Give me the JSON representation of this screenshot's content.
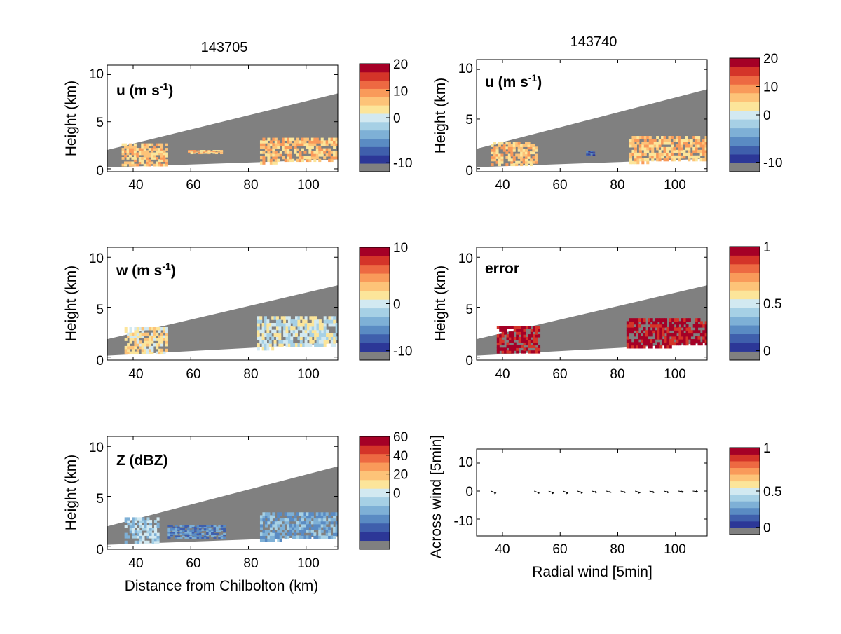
{
  "colors": {
    "gray": "#808080",
    "scale": [
      "#2c3797",
      "#3f5fac",
      "#5a8bc3",
      "#7eb0d6",
      "#a6d0e5",
      "#d2e9f1",
      "#fce59a",
      "#fdc378",
      "#f99a5a",
      "#ed6942",
      "#d43429",
      "#a50026"
    ]
  },
  "chart_data": [
    {
      "type": "heatmap",
      "panel": "u-143705",
      "title": "143705",
      "annotation": "u (m s-1)",
      "ylabel": "Height (km)",
      "xlabel": "",
      "xlim": [
        31,
        111
      ],
      "ylim": [
        -0.3,
        11
      ],
      "xticks": [
        "40",
        "60",
        "80",
        "100"
      ],
      "yticks": [
        "0",
        "5",
        "10"
      ],
      "grid": false,
      "colorbar": {
        "ticks": [
          {
            "label": "20",
            "frac": 1.0
          },
          {
            "label": "10",
            "frac": 0.75
          },
          {
            "label": "0",
            "frac": 0.5
          },
          {
            "label": "-10",
            "frac": 0.083
          }
        ]
      },
      "coverage": {
        "base_at": [
          [
            31,
            0.15
          ],
          [
            111,
            1.0
          ]
        ],
        "top_at": [
          [
            31,
            2.0
          ],
          [
            111,
            8.0
          ]
        ]
      },
      "features": [
        {
          "x": [
            36,
            52
          ],
          "y": [
            0.3,
            2.7
          ],
          "level": 7
        },
        {
          "x": [
            84,
            111
          ],
          "y": [
            0.5,
            3.3
          ],
          "level": 7
        },
        {
          "x": [
            59,
            71
          ],
          "y": [
            1.6,
            2.0
          ],
          "level": 7
        }
      ]
    },
    {
      "type": "heatmap",
      "panel": "u-143740",
      "title": "143740",
      "annotation": "u (m s-1)",
      "ylabel": "Height (km)",
      "xlabel": "",
      "xlim": [
        31,
        111
      ],
      "ylim": [
        -0.3,
        11
      ],
      "xticks": [
        "40",
        "60",
        "80",
        "100"
      ],
      "yticks": [
        "0",
        "5",
        "10"
      ],
      "grid": false,
      "colorbar": {
        "ticks": [
          {
            "label": "20",
            "frac": 1.0
          },
          {
            "label": "10",
            "frac": 0.75
          },
          {
            "label": "0",
            "frac": 0.5
          },
          {
            "label": "-10",
            "frac": 0.083
          }
        ]
      },
      "coverage": {
        "base_at": [
          [
            31,
            0.15
          ],
          [
            111,
            1.0
          ]
        ],
        "top_at": [
          [
            31,
            2.0
          ],
          [
            111,
            8.0
          ]
        ]
      },
      "features": [
        {
          "x": [
            36,
            52
          ],
          "y": [
            0.3,
            2.7
          ],
          "level": 7
        },
        {
          "x": [
            84,
            111
          ],
          "y": [
            0.5,
            3.3
          ],
          "level": 7
        },
        {
          "x": [
            69,
            72
          ],
          "y": [
            1.3,
            1.8
          ],
          "level": 1
        }
      ]
    },
    {
      "type": "heatmap",
      "panel": "w-143705",
      "annotation": "w (m s-1)",
      "ylabel": "Height (km)",
      "xlabel": "",
      "xlim": [
        31,
        111
      ],
      "ylim": [
        -0.3,
        11
      ],
      "xticks": [
        "40",
        "60",
        "80",
        "100"
      ],
      "yticks": [
        "0",
        "5",
        "10"
      ],
      "grid": false,
      "colorbar": {
        "ticks": [
          {
            "label": "10",
            "frac": 1.0
          },
          {
            "label": "0",
            "frac": 0.5
          },
          {
            "label": "-10",
            "frac": 0.083
          }
        ]
      },
      "coverage": {
        "base_at": [
          [
            31,
            0.15
          ],
          [
            111,
            1.4
          ]
        ],
        "top_at": [
          [
            31,
            1.8
          ],
          [
            111,
            7.2
          ]
        ]
      },
      "features": [
        {
          "x": [
            37,
            52
          ],
          "y": [
            0.3,
            3.0
          ],
          "level": 6
        },
        {
          "x": [
            83,
            111
          ],
          "y": [
            0.7,
            4.1
          ],
          "level": 5
        }
      ]
    },
    {
      "type": "heatmap",
      "panel": "error-143740",
      "annotation": "error",
      "ylabel": "Height (km)",
      "xlabel": "",
      "xlim": [
        31,
        111
      ],
      "ylim": [
        -0.3,
        11
      ],
      "xticks": [
        "40",
        "60",
        "80",
        "100"
      ],
      "yticks": [
        "0",
        "5",
        "10"
      ],
      "grid": false,
      "colorbar": {
        "ticks": [
          {
            "label": "1",
            "frac": 1.0
          },
          {
            "label": "0.5",
            "frac": 0.5
          },
          {
            "label": "0",
            "frac": 0.083
          }
        ]
      },
      "coverage": {
        "base_at": [
          [
            31,
            0.15
          ],
          [
            111,
            1.4
          ]
        ],
        "top_at": [
          [
            31,
            1.8
          ],
          [
            111,
            7.2
          ]
        ]
      },
      "features": [
        {
          "x": [
            38,
            53
          ],
          "y": [
            0.4,
            3.1
          ],
          "level": 11
        },
        {
          "x": [
            83,
            111
          ],
          "y": [
            0.9,
            3.9
          ],
          "level": 11
        }
      ]
    },
    {
      "type": "heatmap",
      "panel": "Z-143705",
      "annotation": "Z (dBZ)",
      "ylabel": "Height (km)",
      "xlabel": "Distance from Chilbolton (km)",
      "xlim": [
        31,
        111
      ],
      "ylim": [
        -0.3,
        11
      ],
      "xticks": [
        "40",
        "60",
        "80",
        "100"
      ],
      "yticks": [
        "0",
        "5",
        "10"
      ],
      "grid": false,
      "colorbar": {
        "ticks": [
          {
            "label": "60",
            "frac": 1.0
          },
          {
            "label": "40",
            "frac": 0.8333
          },
          {
            "label": "20",
            "frac": 0.6667
          },
          {
            "label": "0",
            "frac": 0.5
          }
        ]
      },
      "coverage": {
        "base_at": [
          [
            31,
            0.15
          ],
          [
            111,
            1.0
          ]
        ],
        "top_at": [
          [
            31,
            2.0
          ],
          [
            111,
            8.0
          ]
        ]
      },
      "features": [
        {
          "x": [
            37,
            49
          ],
          "y": [
            0.3,
            2.9
          ],
          "level": 4
        },
        {
          "x": [
            84,
            111
          ],
          "y": [
            0.5,
            3.4
          ],
          "level": 3
        },
        {
          "x": [
            52,
            72
          ],
          "y": [
            0.8,
            2.1
          ],
          "level": 2
        }
      ]
    },
    {
      "type": "scatter",
      "panel": "wind-vectors",
      "ylabel": "Across wind [5min]",
      "xlabel": "Radial wind [5min]",
      "xlim": [
        31,
        111
      ],
      "ylim": [
        -16,
        15
      ],
      "xticks": [
        "40",
        "60",
        "80",
        "100"
      ],
      "yticks": [
        "10",
        "0",
        "-10"
      ],
      "grid": false,
      "colorbar": {
        "ticks": [
          {
            "label": "1",
            "frac": 1.0
          },
          {
            "label": "0.5",
            "frac": 0.5
          },
          {
            "label": "0",
            "frac": 0.083
          }
        ]
      },
      "vectors": [
        {
          "x": 36,
          "y": 0,
          "u": 2.5,
          "v": -1
        },
        {
          "x": 51,
          "y": 0,
          "u": 2.5,
          "v": -1
        },
        {
          "x": 56,
          "y": 0,
          "u": 2.5,
          "v": -1
        },
        {
          "x": 61,
          "y": 0,
          "u": 2.5,
          "v": -1
        },
        {
          "x": 66,
          "y": 0,
          "u": 2.5,
          "v": -0.8
        },
        {
          "x": 71,
          "y": 0,
          "u": 2.5,
          "v": -0.6
        },
        {
          "x": 76,
          "y": 0,
          "u": 2.5,
          "v": -0.6
        },
        {
          "x": 81,
          "y": 0,
          "u": 2.5,
          "v": -0.6
        },
        {
          "x": 86,
          "y": 0,
          "u": 2.5,
          "v": -0.8
        },
        {
          "x": 91,
          "y": 0,
          "u": 2.5,
          "v": -0.6
        },
        {
          "x": 96,
          "y": 0,
          "u": 2.5,
          "v": -0.6
        },
        {
          "x": 101,
          "y": 0,
          "u": 2.5,
          "v": -0.4
        },
        {
          "x": 106,
          "y": 0,
          "u": 2.5,
          "v": -0.3
        }
      ]
    }
  ]
}
